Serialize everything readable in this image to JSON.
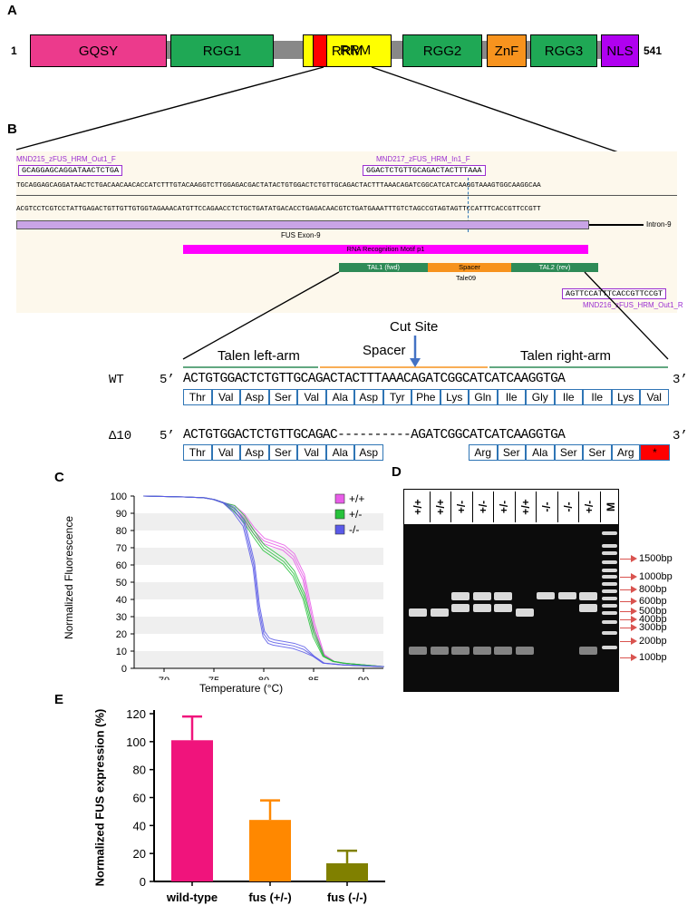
{
  "panelA": {
    "label": "A",
    "start": "1",
    "end": "541",
    "domains": [
      {
        "name": "GQSY",
        "color": "#ec3a8c"
      },
      {
        "name": "RGG1",
        "color": "#1fa855"
      },
      {
        "name": "RRM",
        "color": "#ffff00"
      },
      {
        "name": "RGG2",
        "color": "#1fa855"
      },
      {
        "name": "ZnF",
        "color": "#f7931e"
      },
      {
        "name": "RGG3",
        "color": "#1fa855"
      },
      {
        "name": "NLS",
        "color": "#b000f0"
      }
    ]
  },
  "panelB": {
    "label": "B",
    "primers": {
      "p215_name": "MND215_zFUS_HRM_Out1_F",
      "p215_seq": "GCAGGAGCAGGATAACTCTGA",
      "p217_name": "MND217_zFUS_HRM_In1_F",
      "p217_seq": "GGACTCTGTTGCAGACTACTTTAAA",
      "p216_seq": "AGTTCCATTTCACCGTTCCGT",
      "p216_name": "MND216_zFUS_HRM_Out1_R"
    },
    "seq_top": "TGCAGGAGCAGGATAACTCTGACAACAACACCATCTTTGTACAAGGTCTTGGAGACGACTATACTGTGGACTCTGTTGCAGACTACTTTAAACAGATCGGCATCATCAAGGTAAAGTGGCAAGGCAA",
    "seq_bottom": "ACGTCCTCGTCCTATTGAGACTGTTGTTGTGGTAGAAACATGTTCCAGAACCTCTGCTGATATGACACCTGAGACAACGTCTGATGAAATTTGTCTAGCCGTAGTAGTTCCATTTCACCGTTCCGTT",
    "exon_label": "FUS Exon-9",
    "intron_label": "Intron-9",
    "rrm_label": "RNA Recognition Motif p1",
    "tal1": "TAL1 (fwd)",
    "spacer": "Spacer",
    "tal2": "TAL2 (rev)",
    "tale": "Tale09",
    "cut_site": "Cut Site",
    "left_arm": "Talen left-arm",
    "spacer_big": "Spacer",
    "right_arm": "Talen right-arm",
    "wt_label": "WT",
    "five": "5’",
    "three": "3’",
    "wt_seq": "ACTGTGGACTCTGTTGCAGACTACTTTAAACAGATCGGCATCATCAAGGTGA",
    "wt_aa": [
      "Thr",
      "Val",
      "Asp",
      "Ser",
      "Val",
      "Ala",
      "Asp",
      "Tyr",
      "Phe",
      "Lys",
      "Gln",
      "Ile",
      "Gly",
      "Ile",
      "Ile",
      "Lys",
      "Val"
    ],
    "del_label": "Δ10",
    "del_seq": "ACTGTGGACTCTGTTGCAGAC----------AGATCGGCATCATCAAGGTGA",
    "del_aa_left": [
      "Thr",
      "Val",
      "Asp",
      "Ser",
      "Val",
      "Ala",
      "Asp"
    ],
    "del_aa_right": [
      "Arg",
      "Ser",
      "Ala",
      "Ser",
      "Ser",
      "Arg",
      "*"
    ]
  },
  "panelC": {
    "label": "C",
    "chart_data": {
      "type": "line",
      "title": "",
      "xlabel": "Temperature (°C)",
      "ylabel": "Normalized Fluorescence",
      "xlim": [
        67,
        92
      ],
      "ylim": [
        0,
        100
      ],
      "xticks": [
        70,
        75,
        80,
        85,
        90
      ],
      "yticks": [
        0,
        10,
        20,
        30,
        40,
        50,
        60,
        70,
        80,
        90,
        100
      ],
      "series": [
        {
          "name": "+/+",
          "color": "#e85de8",
          "x": [
            68,
            72,
            74,
            75,
            76,
            77,
            78,
            79,
            80,
            81,
            82,
            83,
            84,
            85,
            86,
            87,
            88,
            90,
            92
          ],
          "y": [
            100,
            99.5,
            99,
            98,
            96,
            93,
            88,
            80,
            74,
            72,
            70,
            65,
            53,
            25,
            8,
            4,
            3,
            2,
            1
          ]
        },
        {
          "name": "+/-",
          "color": "#27c23b",
          "x": [
            68,
            72,
            74,
            75,
            76,
            77,
            78,
            79,
            80,
            81,
            82,
            83,
            84,
            85,
            86,
            87,
            88,
            90,
            92
          ],
          "y": [
            100,
            99.5,
            99,
            98,
            96,
            93,
            87,
            78,
            70,
            66,
            62,
            55,
            42,
            20,
            7,
            4,
            3,
            2,
            1
          ]
        },
        {
          "name": "-/-",
          "color": "#5a5ae8",
          "x": [
            68,
            72,
            74,
            75,
            76,
            77,
            78,
            79,
            79.5,
            80,
            80.5,
            81,
            82,
            83,
            84,
            85,
            86,
            88,
            92
          ],
          "y": [
            100,
            99.5,
            99,
            98,
            96,
            92,
            84,
            60,
            35,
            20,
            16,
            15,
            14,
            13,
            11,
            7,
            3,
            2,
            1
          ]
        }
      ]
    }
  },
  "panelD": {
    "label": "D",
    "lanes": [
      "+/+",
      "+/+",
      "+/-",
      "+/-",
      "+/-",
      "+/+",
      "-/-",
      "-/-",
      "+/-",
      "M"
    ],
    "markers": [
      "1500bp",
      "1000bp",
      "800bp",
      "600bp",
      "500bp",
      "400bp",
      "300bp",
      "200bp",
      "100bp"
    ]
  },
  "panelE": {
    "label": "E",
    "chart_data": {
      "type": "bar",
      "title": "",
      "categories": [
        "wild-type",
        "fus (+/-)",
        "fus (-/-)"
      ],
      "values": [
        101,
        44,
        13
      ],
      "errors": [
        17,
        14,
        9
      ],
      "colors": [
        "#f0147c",
        "#ff8800",
        "#808000"
      ],
      "xlabel": "",
      "ylabel": "Normalized FUS expression (%)",
      "ylim": [
        0,
        120
      ],
      "yticks": [
        0,
        20,
        40,
        60,
        80,
        100,
        120
      ]
    }
  }
}
